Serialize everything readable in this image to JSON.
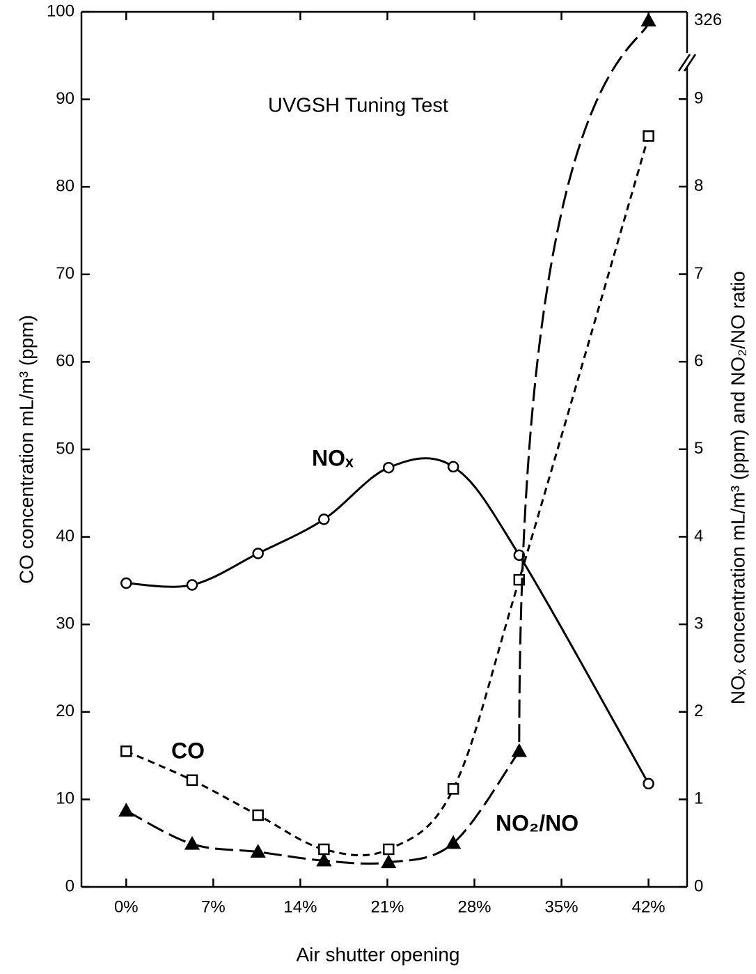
{
  "chart_data": {
    "type": "line",
    "title": "UVGSH Tuning Test",
    "x_label": "Air shutter opening",
    "y_label": "CO concentration mL/m³ (ppm)",
    "y2_label": "NOₓ concentration mL/m³ (ppm) and NO₂/NO ratio",
    "x": [
      0,
      5.3,
      10.6,
      15.9,
      21.1,
      26.3,
      31.6,
      42
    ],
    "xlim": [
      -3.6,
      45.1
    ],
    "xticks": [
      {
        "value": 0,
        "label": "0%"
      },
      {
        "value": 7,
        "label": "7%"
      },
      {
        "value": 14,
        "label": "14%"
      },
      {
        "value": 21,
        "label": "21%"
      },
      {
        "value": 28,
        "label": "28%"
      },
      {
        "value": 35,
        "label": "35%"
      },
      {
        "value": 42,
        "label": "42%"
      }
    ],
    "ylim": [
      0,
      100
    ],
    "yticks": [
      0,
      10,
      20,
      30,
      40,
      50,
      60,
      70,
      80,
      90,
      100
    ],
    "y2lim": [
      0,
      326.5
    ],
    "y2_break": [
      9.4,
      324
    ],
    "y2ticks": [
      0,
      1,
      2,
      3,
      4,
      5,
      6,
      7,
      8,
      9,
      326
    ],
    "series": [
      {
        "name": "NOₓ",
        "color": "#000000",
        "axis": "y2",
        "line_style": "solid",
        "marker": "circle",
        "values": [
          3.47,
          3.45,
          3.81,
          4.2,
          4.79,
          4.8,
          3.79,
          1.18
        ]
      },
      {
        "name": "CO",
        "color": "#000000",
        "axis": "y",
        "line_style": "short-dash",
        "marker": "square",
        "values": [
          15.5,
          12.2,
          8.2,
          4.3,
          4.3,
          11.2,
          35.1,
          85.8
        ]
      },
      {
        "name": "NO₂/NO",
        "color": "#000000",
        "axis": "y2",
        "line_style": "long-dash",
        "marker": "triangle",
        "values": [
          0.87,
          0.49,
          0.4,
          0.3,
          0.28,
          0.5,
          1.55,
          326
        ]
      }
    ]
  }
}
